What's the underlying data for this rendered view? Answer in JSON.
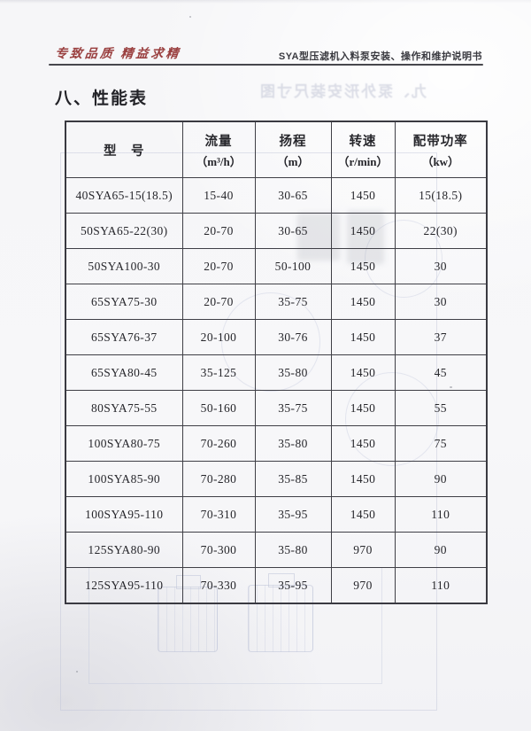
{
  "page": {
    "header": {
      "slogan": "专致品质  精益求精",
      "manual_title": "SYA型压滤机入料泵安装、操作和维护说明书"
    },
    "section_title": "八、性能表",
    "bleedthrough_title": "九、泵外形安装尺寸图"
  },
  "table": {
    "columns": [
      {
        "title": "型　号",
        "sub": ""
      },
      {
        "title": "流量",
        "sub": "（m³/h）"
      },
      {
        "title": "扬程",
        "sub": "（m）"
      },
      {
        "title": "转速",
        "sub": "（r/min）"
      },
      {
        "title": "配带功率",
        "sub": "（kw）"
      }
    ],
    "rows": [
      [
        "40SYA65-15(18.5)",
        "15-40",
        "30-65",
        "1450",
        "15(18.5)"
      ],
      [
        "50SYA65-22(30)",
        "20-70",
        "30-65",
        "1450",
        "22(30)"
      ],
      [
        "50SYA100-30",
        "20-70",
        "50-100",
        "1450",
        "30"
      ],
      [
        "65SYA75-30",
        "20-70",
        "35-75",
        "1450",
        "30"
      ],
      [
        "65SYA76-37",
        "20-100",
        "30-76",
        "1450",
        "37"
      ],
      [
        "65SYA80-45",
        "35-125",
        "35-80",
        "1450",
        "45"
      ],
      [
        "80SYA75-55",
        "50-160",
        "35-75",
        "1450",
        "55"
      ],
      [
        "100SYA80-75",
        "70-260",
        "35-80",
        "1450",
        "75"
      ],
      [
        "100SYA85-90",
        "70-280",
        "35-85",
        "1450",
        "90"
      ],
      [
        "100SYA95-110",
        "70-310",
        "35-95",
        "1450",
        "110"
      ],
      [
        "125SYA80-90",
        "70-300",
        "35-80",
        "970",
        "90"
      ],
      [
        "125SYA95-110",
        "70-330",
        "35-95",
        "970",
        "110"
      ]
    ]
  },
  "colors": {
    "slogan_red": "#9a4040",
    "ink": "#26262b",
    "table_border": "#3f3f46",
    "page_background": "#f7f7f9",
    "bleedthrough": "#aeb4c7"
  }
}
